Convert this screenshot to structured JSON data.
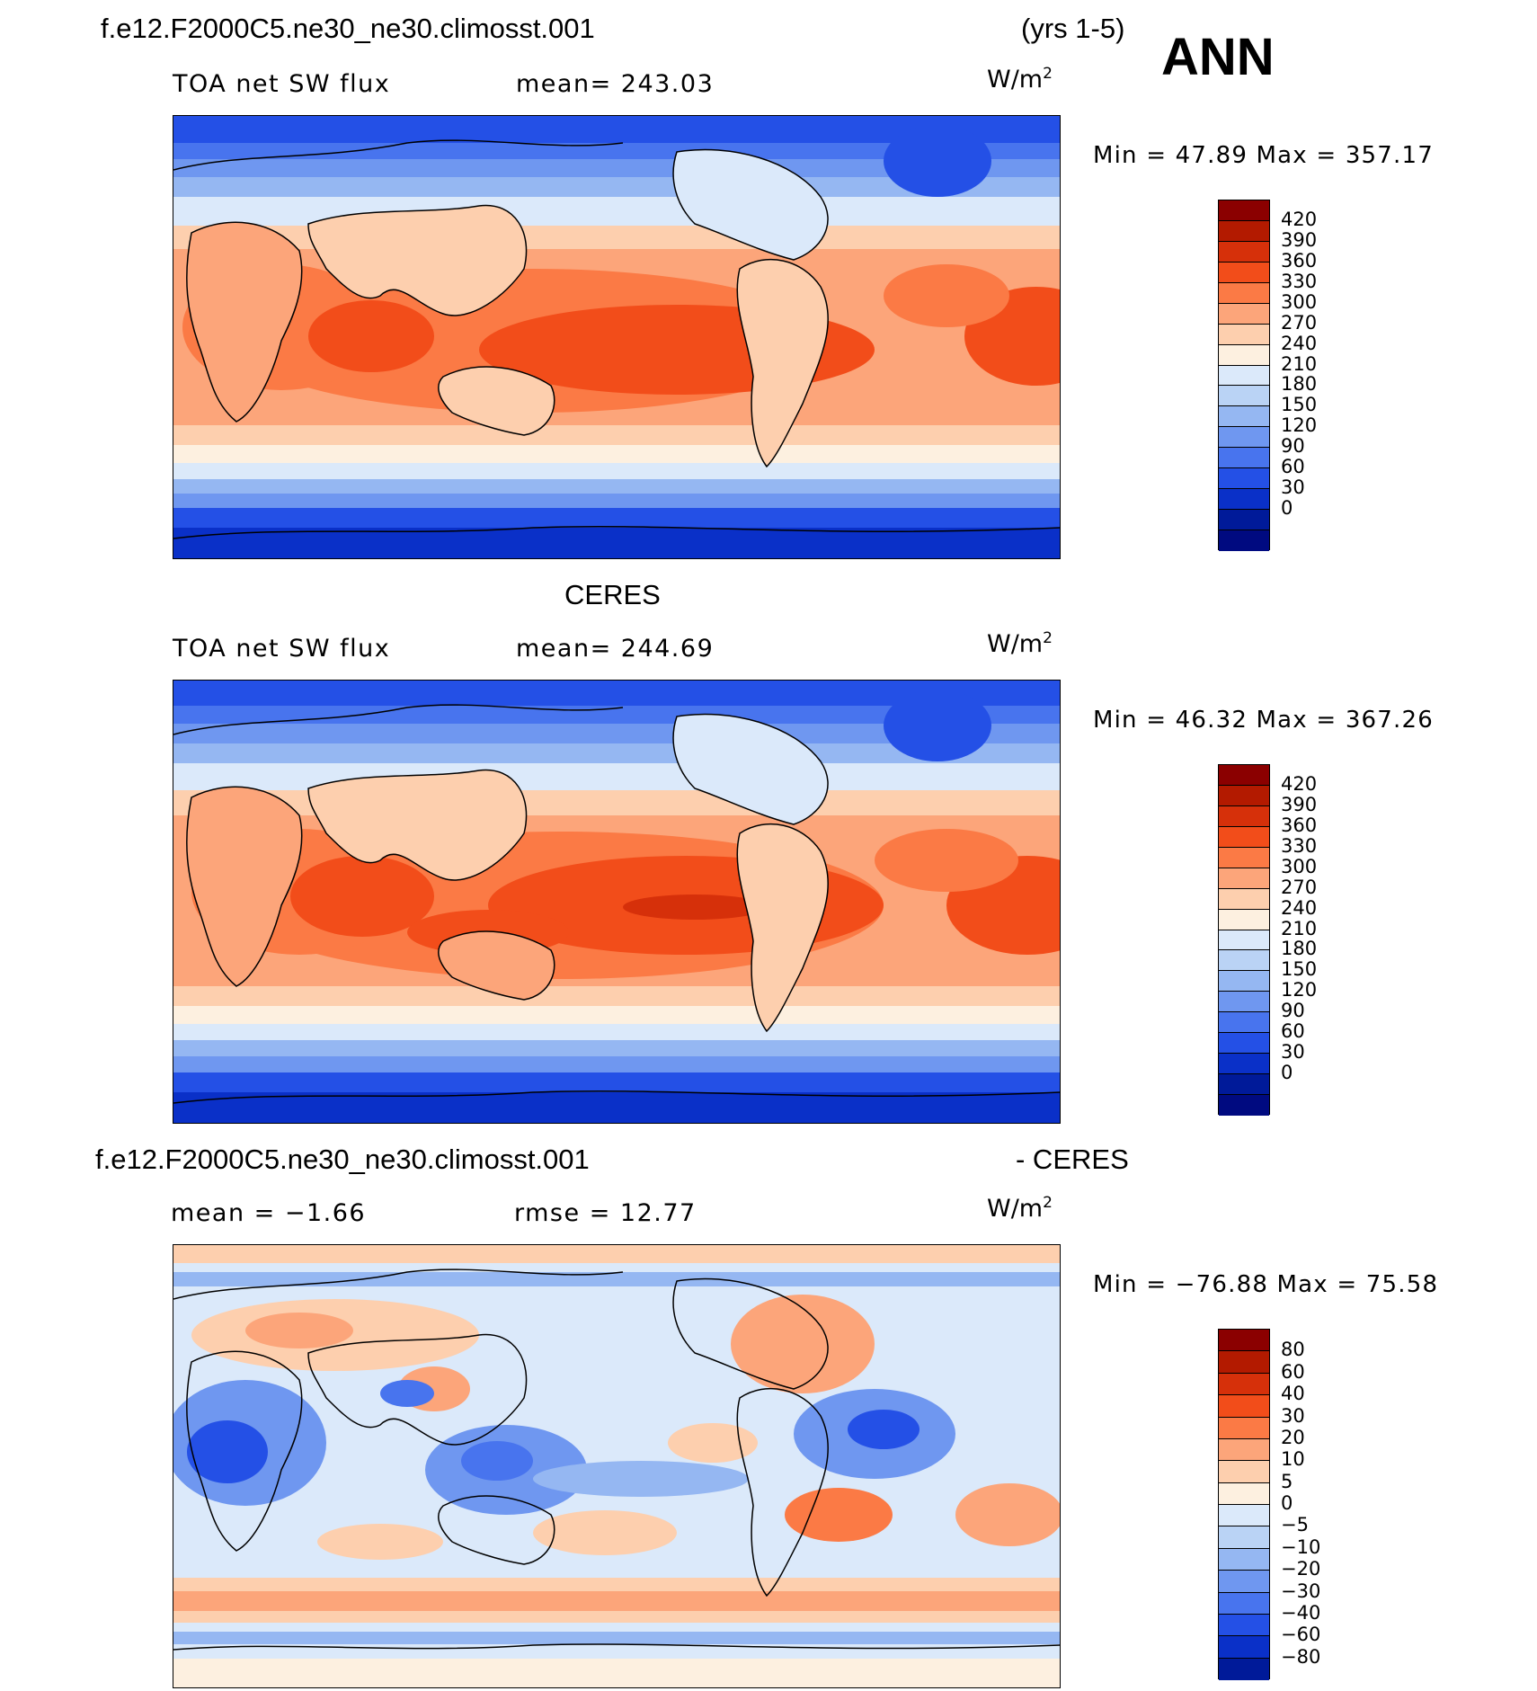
{
  "header": {
    "case_title": "f.e12.F2000C5.ne30_ne30.climosst.001",
    "years": "(yrs 1-5)",
    "season": "ANN"
  },
  "panels": [
    {
      "id": "model",
      "title": "",
      "left_label": "TOA  net  SW  flux",
      "center_label": "mean=  243.03",
      "units_base": "W/m",
      "units_exp": "2",
      "minmax": "Min  =    47.89  Max  =  357.17",
      "colorbar_labels": [
        "420",
        "390",
        "360",
        "330",
        "300",
        "270",
        "240",
        "210",
        "180",
        "150",
        "120",
        "90",
        "60",
        "30",
        "0"
      ]
    },
    {
      "id": "obs",
      "title": "CERES",
      "left_label": "TOA  net  SW  flux",
      "center_label": "mean=  244.69",
      "units_base": "W/m",
      "units_exp": "2",
      "minmax": "Min  =    46.32  Max  =  367.26",
      "colorbar_labels": [
        "420",
        "390",
        "360",
        "330",
        "300",
        "270",
        "240",
        "210",
        "180",
        "150",
        "120",
        "90",
        "60",
        "30",
        "0"
      ]
    },
    {
      "id": "diff",
      "title": "f.e12.F2000C5.ne30_ne30.climosst.001",
      "title_right": "- CERES",
      "left_label": "mean  =    −1.66",
      "center_label": "rmse  =    12.77",
      "units_base": "W/m",
      "units_exp": "2",
      "minmax": "Min  =  −76.88  Max  =    75.58",
      "colorbar_labels": [
        "80",
        "60",
        "40",
        "30",
        "20",
        "10",
        "5",
        "0",
        "−5",
        "−10",
        "−20",
        "−30",
        "−40",
        "−60",
        "−80"
      ]
    }
  ],
  "colors": {
    "abs_scale": [
      "#8b0000",
      "#b31a00",
      "#d6300a",
      "#f24d1a",
      "#fb7a45",
      "#fca57a",
      "#fdcfae",
      "#fdf0e0",
      "#dbe9fa",
      "#bad3f5",
      "#95b7f2",
      "#6f97f0",
      "#4874ee",
      "#2450e6",
      "#0a30c8",
      "#001a99",
      "#000a80"
    ],
    "diff_scale": [
      "#8b0000",
      "#b31a00",
      "#d6300a",
      "#f24d1a",
      "#fb7a45",
      "#fca57a",
      "#fdcfae",
      "#fdf0e0",
      "#dbe9fa",
      "#bad3f5",
      "#95b7f2",
      "#6f97f0",
      "#4874ee",
      "#2450e6",
      "#0a30c8",
      "#001a99"
    ]
  }
}
